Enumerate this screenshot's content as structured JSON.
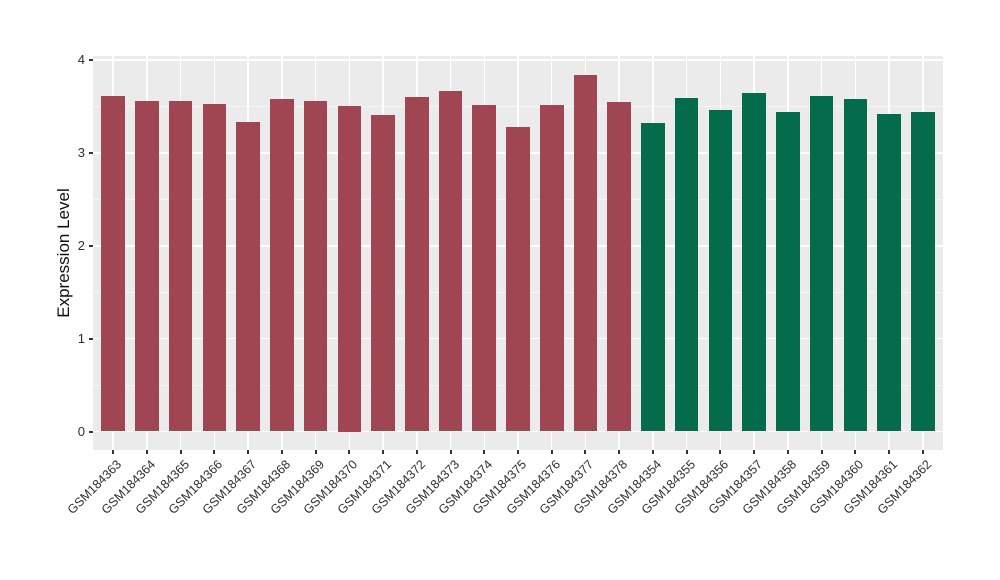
{
  "chart_data": {
    "type": "bar",
    "title": "",
    "xlabel": "",
    "ylabel": "Expression Level",
    "ylim": [
      0,
      4
    ],
    "yticks": [
      0,
      1,
      2,
      3,
      4
    ],
    "grid": "major-white-and-minor-white-on-gray-panel",
    "legend": "none",
    "categories": [
      "GSM184363",
      "GSM184364",
      "GSM184365",
      "GSM184366",
      "GSM184367",
      "GSM184368",
      "GSM184369",
      "GSM184370",
      "GSM184371",
      "GSM184372",
      "GSM184373",
      "GSM184374",
      "GSM184375",
      "GSM184376",
      "GSM184377",
      "GSM184378",
      "GSM184354",
      "GSM184355",
      "GSM184356",
      "GSM184357",
      "GSM184358",
      "GSM184359",
      "GSM184360",
      "GSM184361",
      "GSM184362"
    ],
    "values": [
      3.61,
      3.56,
      3.56,
      3.53,
      3.33,
      3.58,
      3.56,
      3.5,
      3.41,
      3.6,
      3.67,
      3.52,
      3.28,
      3.52,
      3.84,
      3.55,
      3.32,
      3.59,
      3.46,
      3.65,
      3.44,
      3.61,
      3.58,
      3.42,
      3.44
    ],
    "bar_groups": [
      "maroon",
      "maroon",
      "maroon",
      "maroon",
      "maroon",
      "maroon",
      "maroon",
      "maroon",
      "maroon",
      "maroon",
      "maroon",
      "maroon",
      "maroon",
      "maroon",
      "maroon",
      "maroon",
      "green",
      "green",
      "green",
      "green",
      "green",
      "green",
      "green",
      "green",
      "green"
    ],
    "group_colors": {
      "maroon": "#A04552",
      "green": "#046B4B"
    },
    "style_colors": {
      "panel_bg": "#EBEBEB",
      "grid_major": "#FFFFFF",
      "grid_minor": "#F5F5F5",
      "axis_text": "#2E2E2E",
      "tick_mark": "#333333"
    }
  }
}
